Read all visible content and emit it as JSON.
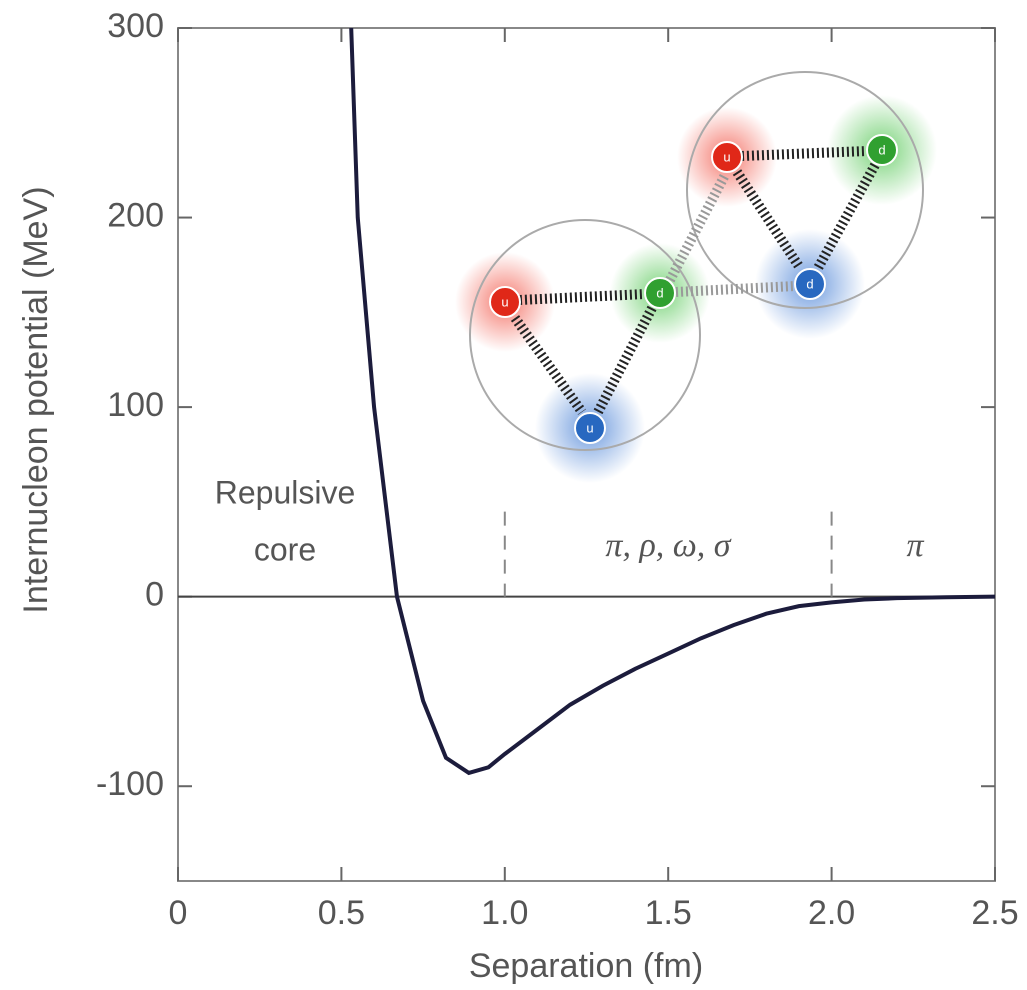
{
  "chart_data": {
    "type": "line",
    "x_label": "Separation (fm)",
    "y_label": "Internucleon potential (MeV)",
    "x": [
      0.53,
      0.55,
      0.6,
      0.67,
      0.75,
      0.82,
      0.89,
      0.95,
      1.0,
      1.1,
      1.2,
      1.3,
      1.4,
      1.5,
      1.6,
      1.7,
      1.8,
      1.9,
      2.0,
      2.1,
      2.2,
      2.35,
      2.5
    ],
    "values": [
      300,
      200,
      100,
      0,
      -55,
      -85,
      -93,
      -90,
      -83,
      -70,
      -57,
      -47,
      -38,
      -30,
      -22,
      -15,
      -9,
      -5,
      -3,
      -1.5,
      -0.8,
      -0.3,
      0
    ],
    "color": "#1c1c3c",
    "xlim": [
      0,
      2.5
    ],
    "ylim": [
      -150,
      300
    ],
    "xticks": [
      0,
      0.5,
      {
        "value": 1,
        "label": "1.0"
      },
      1.5,
      {
        "value": 2,
        "label": "2.0"
      },
      2.5
    ],
    "yticks": [
      -100,
      0,
      100,
      200,
      300
    ],
    "zero_line": true,
    "region_boundaries": [
      1,
      2
    ],
    "annotations": [
      "Repulsive",
      "core",
      "π, ρ, ω, σ",
      "π"
    ],
    "nucleons": [
      [
        "u",
        "d",
        "u"
      ],
      [
        "u",
        "d",
        "d"
      ]
    ]
  }
}
